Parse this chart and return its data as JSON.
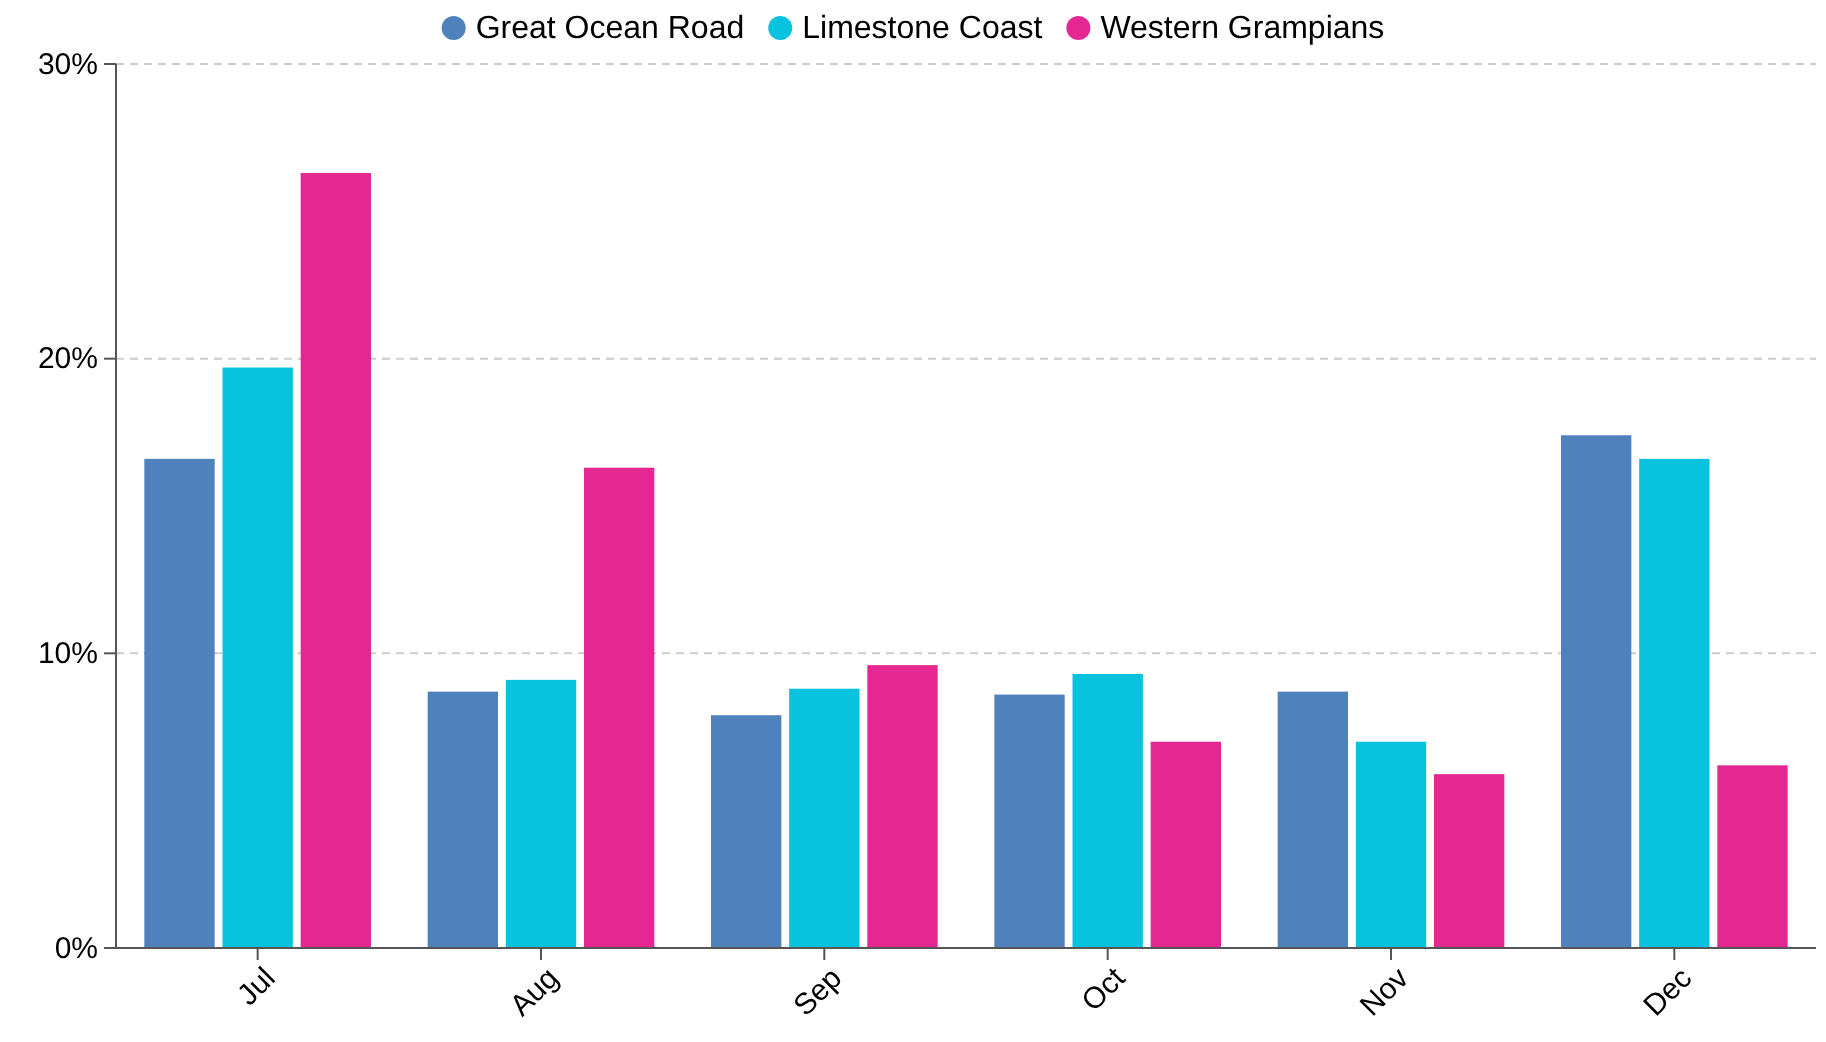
{
  "chart_data": {
    "type": "bar",
    "categories": [
      "Jul",
      "Aug",
      "Sep",
      "Oct",
      "Nov",
      "Dec"
    ],
    "series": [
      {
        "name": "Great Ocean Road",
        "color": "#4f81bd",
        "values": [
          16.6,
          8.7,
          7.9,
          8.6,
          8.7,
          17.4
        ]
      },
      {
        "name": "Limestone Coast",
        "color": "#08c2de",
        "values": [
          19.7,
          9.1,
          8.8,
          9.3,
          7.0,
          16.6
        ]
      },
      {
        "name": "Western Grampians",
        "color": "#e52792",
        "values": [
          26.3,
          16.3,
          9.6,
          7.0,
          5.9,
          6.2
        ]
      }
    ],
    "ylim": [
      0,
      30
    ],
    "yticks": [
      {
        "value": 0,
        "label": "0%"
      },
      {
        "value": 10,
        "label": "10%"
      },
      {
        "value": 20,
        "label": "20%"
      },
      {
        "value": 30,
        "label": "30%"
      }
    ],
    "grid": "y",
    "legend": "top"
  }
}
